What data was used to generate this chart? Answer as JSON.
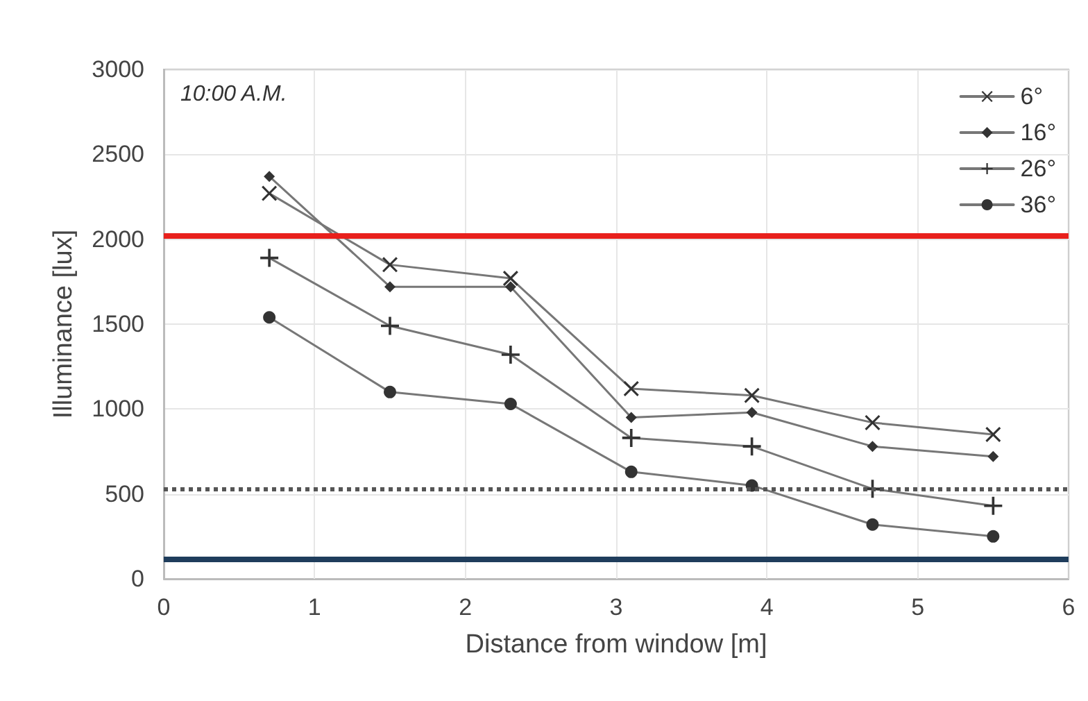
{
  "chart_data": {
    "type": "line",
    "xlabel": "Distance from window [m]",
    "ylabel": "Illuminance [lux]",
    "annotations": [
      "10:00 A.M."
    ],
    "x": [
      0.7,
      1.5,
      2.3,
      3.1,
      3.9,
      4.7,
      5.5
    ],
    "series": [
      {
        "name": "6°",
        "color": "#333333",
        "marker": "cross",
        "values": [
          2270,
          1850,
          1770,
          1120,
          1080,
          920,
          850
        ]
      },
      {
        "name": "16°",
        "color": "#333333",
        "marker": "diamond",
        "values": [
          2370,
          1720,
          1720,
          950,
          980,
          780,
          720
        ]
      },
      {
        "name": "26°",
        "color": "#333333",
        "marker": "plus",
        "values": [
          1890,
          1490,
          1320,
          830,
          780,
          530,
          430
        ]
      },
      {
        "name": "36°",
        "color": "#333333",
        "marker": "circle",
        "values": [
          1540,
          1100,
          1030,
          630,
          550,
          320,
          250
        ]
      }
    ],
    "xlim": [
      0,
      6
    ],
    "xticks": [
      0,
      1,
      2,
      3,
      4,
      5,
      6
    ],
    "ylim": [
      0,
      3000
    ],
    "yticks": [
      0,
      500,
      1000,
      1500,
      2000,
      2500,
      3000
    ],
    "ref_lines": [
      {
        "axis": "y",
        "value": 2020,
        "color": "#e8201c",
        "line_style": "solid"
      },
      {
        "axis": "y",
        "value": 530,
        "color": "#555555",
        "line_style": "dotted"
      },
      {
        "axis": "y",
        "value": 120,
        "color": "#1f3d5c",
        "line_style": "solid"
      }
    ],
    "grid": true,
    "legend": "top right",
    "line_style": "solid"
  }
}
